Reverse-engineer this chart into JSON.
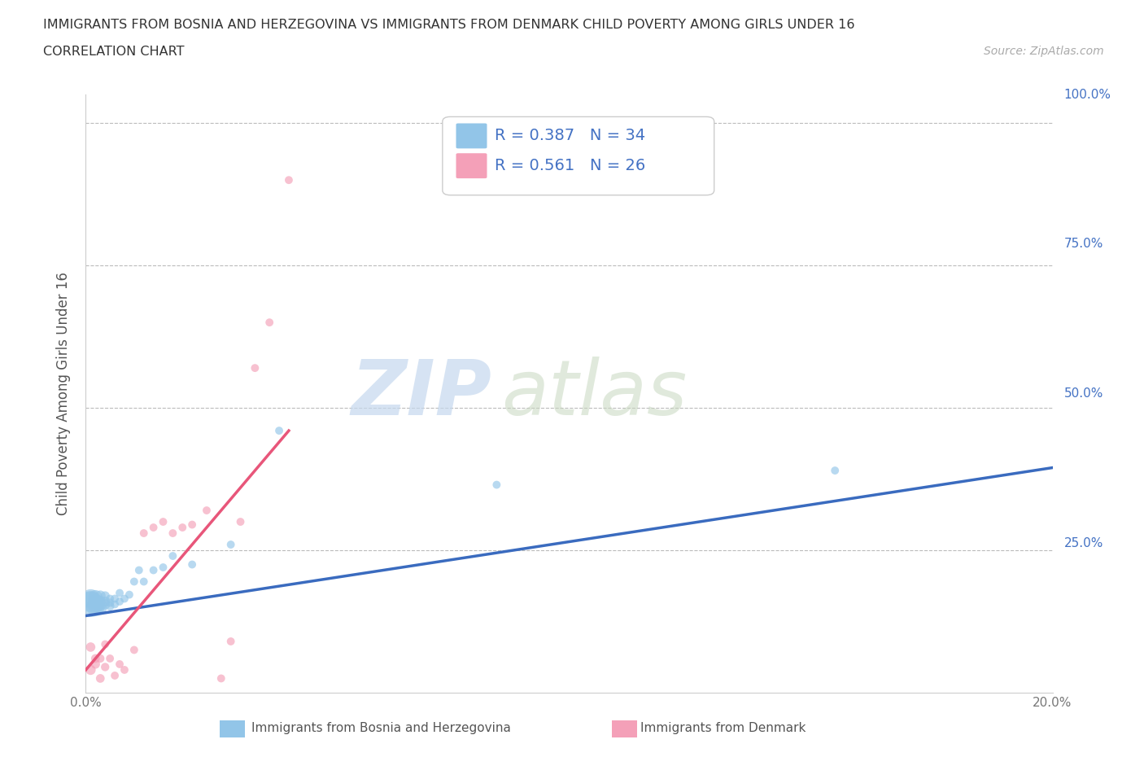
{
  "title": "IMMIGRANTS FROM BOSNIA AND HERZEGOVINA VS IMMIGRANTS FROM DENMARK CHILD POVERTY AMONG GIRLS UNDER 16",
  "subtitle": "CORRELATION CHART",
  "source": "Source: ZipAtlas.com",
  "ylabel": "Child Poverty Among Girls Under 16",
  "xlim": [
    0.0,
    0.2
  ],
  "ylim": [
    0.0,
    1.05
  ],
  "xticks": [
    0.0,
    0.05,
    0.1,
    0.15,
    0.2
  ],
  "xticklabels": [
    "0.0%",
    "",
    "",
    "",
    "20.0%"
  ],
  "yticks": [
    0.25,
    0.5,
    0.75,
    1.0
  ],
  "right_labels": {
    "100.0%": 1.0,
    "75.0%": 0.75,
    "50.0%": 0.5,
    "25.0%": 0.25
  },
  "legend_R1": "R = 0.387",
  "legend_N1": "N = 34",
  "legend_R2": "R = 0.561",
  "legend_N2": "N = 26",
  "color_blue": "#92C5E8",
  "color_pink": "#F4A0B8",
  "line_blue": "#3A6BBF",
  "line_pink": "#E8567A",
  "watermark_zip": "ZIP",
  "watermark_atlas": "atlas",
  "background_color": "#FFFFFF",
  "grid_color": "#BBBBBB",
  "blue_scatter_x": [
    0.001,
    0.001,
    0.001,
    0.002,
    0.002,
    0.002,
    0.002,
    0.003,
    0.003,
    0.003,
    0.003,
    0.004,
    0.004,
    0.004,
    0.005,
    0.005,
    0.005,
    0.006,
    0.006,
    0.007,
    0.007,
    0.008,
    0.009,
    0.01,
    0.011,
    0.012,
    0.014,
    0.016,
    0.018,
    0.022,
    0.03,
    0.04,
    0.085,
    0.155
  ],
  "blue_scatter_y": [
    0.155,
    0.16,
    0.165,
    0.15,
    0.155,
    0.16,
    0.168,
    0.148,
    0.155,
    0.16,
    0.17,
    0.155,
    0.16,
    0.17,
    0.152,
    0.158,
    0.165,
    0.155,
    0.165,
    0.16,
    0.175,
    0.165,
    0.172,
    0.195,
    0.215,
    0.195,
    0.215,
    0.22,
    0.24,
    0.225,
    0.26,
    0.46,
    0.365,
    0.39
  ],
  "blue_scatter_size": [
    500,
    350,
    280,
    250,
    200,
    180,
    150,
    130,
    120,
    100,
    90,
    80,
    75,
    65,
    60,
    55,
    50,
    50,
    50,
    50,
    50,
    50,
    50,
    50,
    50,
    50,
    50,
    50,
    50,
    50,
    50,
    50,
    50,
    50
  ],
  "pink_scatter_x": [
    0.001,
    0.001,
    0.002,
    0.002,
    0.003,
    0.003,
    0.004,
    0.004,
    0.005,
    0.006,
    0.007,
    0.008,
    0.01,
    0.012,
    0.014,
    0.016,
    0.018,
    0.02,
    0.022,
    0.025,
    0.028,
    0.03,
    0.032,
    0.035,
    0.038,
    0.042
  ],
  "pink_scatter_y": [
    0.04,
    0.08,
    0.05,
    0.06,
    0.025,
    0.06,
    0.045,
    0.085,
    0.06,
    0.03,
    0.05,
    0.04,
    0.075,
    0.28,
    0.29,
    0.3,
    0.28,
    0.29,
    0.295,
    0.32,
    0.025,
    0.09,
    0.3,
    0.57,
    0.65,
    0.9
  ],
  "pink_scatter_size": [
    80,
    70,
    65,
    60,
    60,
    55,
    55,
    50,
    50,
    50,
    50,
    50,
    50,
    50,
    50,
    50,
    50,
    50,
    50,
    50,
    50,
    50,
    50,
    50,
    50,
    50
  ],
  "blue_line_x": [
    0.0,
    0.2
  ],
  "blue_line_y": [
    0.135,
    0.395
  ],
  "pink_line_x": [
    0.0,
    0.042
  ],
  "pink_line_y": [
    0.04,
    0.46
  ]
}
